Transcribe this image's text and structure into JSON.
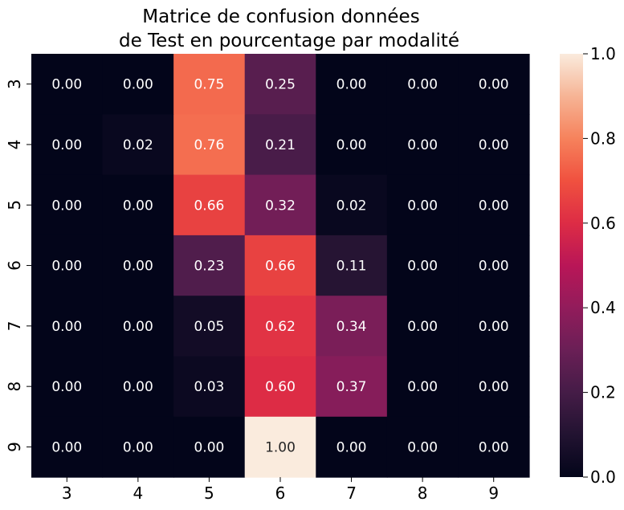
{
  "chart_data": {
    "type": "heatmap",
    "title_lines": [
      "Matrice de confusion données",
      "de Test en pourcentage par modalité"
    ],
    "xlabel": "",
    "ylabel": "",
    "x_categories": [
      "3",
      "4",
      "5",
      "6",
      "7",
      "8",
      "9"
    ],
    "y_categories": [
      "3",
      "4",
      "5",
      "6",
      "7",
      "8",
      "9"
    ],
    "values": [
      [
        0.0,
        0.0,
        0.75,
        0.25,
        0.0,
        0.0,
        0.0
      ],
      [
        0.0,
        0.02,
        0.76,
        0.21,
        0.0,
        0.0,
        0.0
      ],
      [
        0.0,
        0.0,
        0.66,
        0.32,
        0.02,
        0.0,
        0.0
      ],
      [
        0.0,
        0.0,
        0.23,
        0.66,
        0.11,
        0.0,
        0.0
      ],
      [
        0.0,
        0.0,
        0.05,
        0.62,
        0.34,
        0.0,
        0.0
      ],
      [
        0.0,
        0.0,
        0.03,
        0.6,
        0.37,
        0.0,
        0.0
      ],
      [
        0.0,
        0.0,
        0.0,
        1.0,
        0.0,
        0.0,
        0.0
      ]
    ],
    "value_format": "0.00",
    "colormap": "rocket",
    "colorbar": {
      "range": [
        0.0,
        1.0
      ],
      "ticks": [
        0.0,
        0.2,
        0.4,
        0.6,
        0.8,
        1.0
      ],
      "tick_labels": [
        "0.0",
        "0.2",
        "0.4",
        "0.6",
        "0.8",
        "1.0"
      ],
      "placement": "right"
    },
    "grid": false
  }
}
